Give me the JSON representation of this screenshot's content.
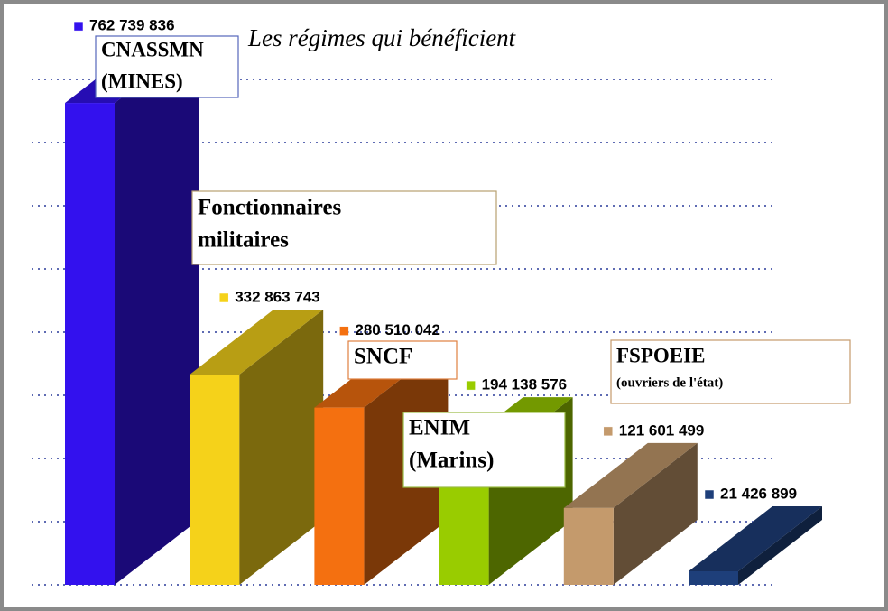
{
  "chart_data": {
    "type": "bar3d",
    "title": "Les régimes qui bénéficient",
    "categories": [
      [
        "CNASSMN",
        "(MINES)"
      ],
      [
        "Fonctionnaires",
        "militaires"
      ],
      [
        "SNCF"
      ],
      [
        "ENIM",
        "(Marins)"
      ],
      [
        "FSPOEIE",
        "(ouvriers de l'état)"
      ],
      null
    ],
    "values": [
      762739836,
      332863743,
      280510042,
      194138576,
      121601499,
      21426899
    ],
    "value_labels": [
      "762 739 836",
      "332 863 743",
      "280 510 042",
      "194 138 576",
      "121 601 499",
      "21 426 899"
    ],
    "colors": [
      "#3311ee",
      "#f5d21a",
      "#f47010",
      "#99cc00",
      "#c49a6c",
      "#1e3f7a"
    ],
    "ylim": [
      0,
      800000000
    ],
    "yticks": [
      0,
      100000000,
      200000000,
      300000000,
      400000000,
      500000000,
      600000000,
      700000000,
      800000000
    ],
    "grid": true
  }
}
